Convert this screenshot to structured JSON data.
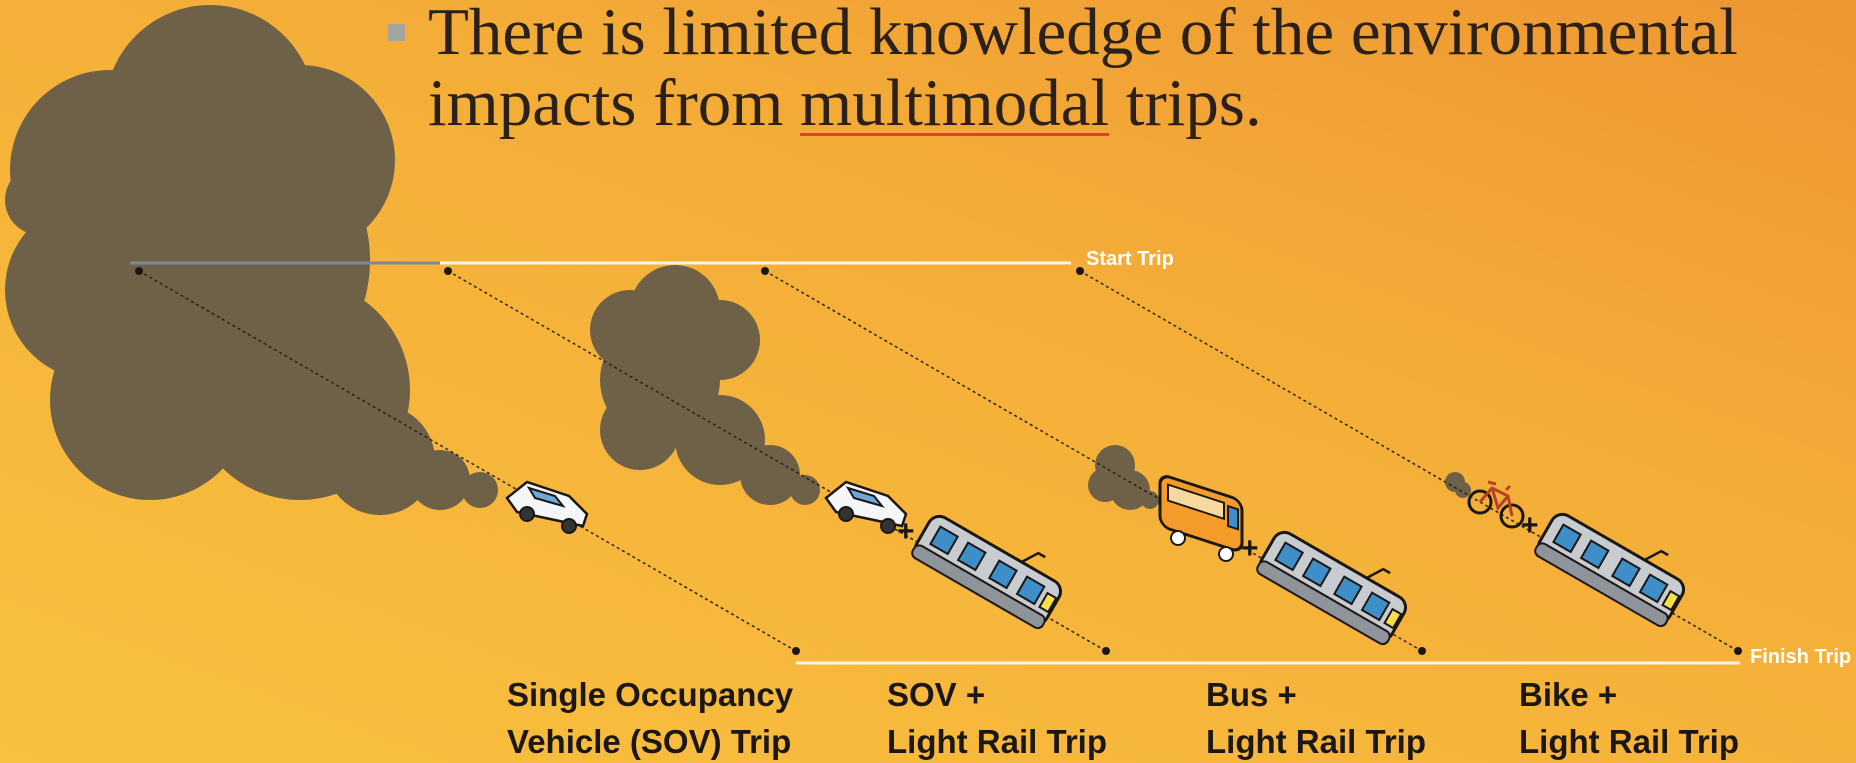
{
  "bullet": {
    "line_1": "There is limited knowledge of the environmental",
    "line_2_start": "impacts from",
    "underlined": "multimodal",
    "line_2_end": "trips."
  },
  "start_label": "Start Trip",
  "finish_label": "Finish Trip",
  "plus_sign": "+",
  "trips": [
    {
      "lines": [
        "Single Occupancy",
        "Vehicle (SOV) Trip"
      ]
    },
    {
      "lines": [
        "SOV +",
        "Light Rail Trip"
      ]
    },
    {
      "lines": [
        "Bus +",
        "Light Rail Trip"
      ]
    },
    {
      "lines": [
        "Bike +",
        "Light Rail Trip"
      ]
    }
  ]
}
